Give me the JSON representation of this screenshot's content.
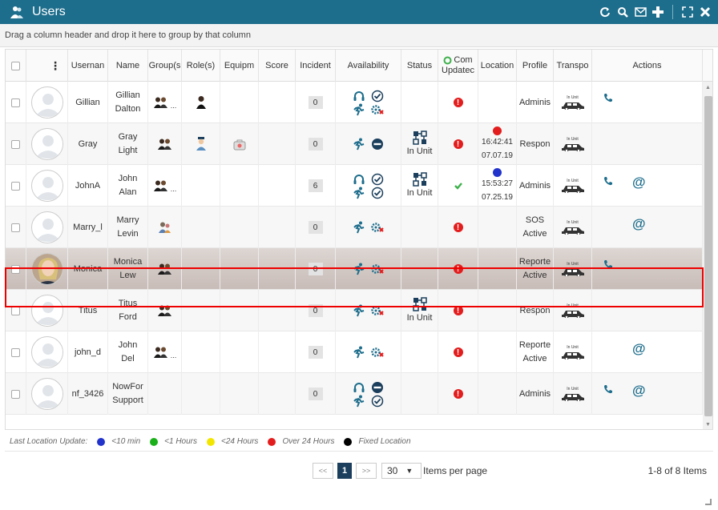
{
  "window": {
    "title": "Users"
  },
  "groupbar": {
    "hint": "Drag a column header and drop it here to group by that column"
  },
  "columns": {
    "username": "Usernan",
    "name": "Name",
    "groups": "Group(s",
    "roles": "Role(s)",
    "equipment": "Equipm",
    "score": "Score",
    "incidents": "Incident",
    "availability": "Availability",
    "status": "Status",
    "comm_updated_1": "Com",
    "comm_updated_2": "Updatec",
    "location": "Location",
    "profile": "Profile",
    "transport": "Transpo",
    "actions": "Actions"
  },
  "rows": [
    {
      "username": "Gillian",
      "first": "Gillian",
      "last": "Dalton",
      "incidents": "0",
      "status": "",
      "location_time": "",
      "location_date": "",
      "profile_1": "Adminis",
      "profile_2": "",
      "transport_label": "In Unit"
    },
    {
      "username": "Gray",
      "first": "Gray",
      "last": "Light",
      "incidents": "0",
      "status": "In Unit",
      "location_time": "16:42:41",
      "location_date": "07.07.19",
      "profile_1": "Respon",
      "profile_2": "",
      "transport_label": "In Unit"
    },
    {
      "username": "JohnA",
      "first": "John",
      "last": "Alan",
      "incidents": "6",
      "status": "In Unit",
      "location_time": "15:53:27",
      "location_date": "07.25.19",
      "profile_1": "Adminis",
      "profile_2": "",
      "transport_label": "In Unit"
    },
    {
      "username": "Marry_l",
      "first": "Marry",
      "last": "Levin",
      "incidents": "0",
      "status": "",
      "location_time": "",
      "location_date": "",
      "profile_1": "SOS",
      "profile_2": "Active",
      "transport_label": "In Unit"
    },
    {
      "username": "Monica",
      "first": "Monica",
      "last": "Lew",
      "incidents": "0",
      "status": "",
      "location_time": "",
      "location_date": "",
      "profile_1": "Reporte",
      "profile_2": "Active",
      "transport_label": "In Unit"
    },
    {
      "username": "Titus",
      "first": "Titus",
      "last": "Ford",
      "incidents": "0",
      "status": "In Unit",
      "location_time": "",
      "location_date": "",
      "profile_1": "Respon",
      "profile_2": "",
      "transport_label": "In Unit"
    },
    {
      "username": "john_d",
      "first": "John",
      "last": "Del",
      "incidents": "0",
      "status": "",
      "location_time": "",
      "location_date": "",
      "profile_1": "Reporte",
      "profile_2": "Active",
      "transport_label": "In Unit"
    },
    {
      "username": "nf_3426",
      "first": "NowFor",
      "last": "Support",
      "incidents": "0",
      "status": "",
      "location_time": "",
      "location_date": "",
      "profile_1": "Adminis",
      "profile_2": "",
      "transport_label": "In Unit"
    }
  ],
  "ellipsis": "...",
  "legend": {
    "label": "Last Location Update:",
    "items": [
      {
        "text": "<10 min",
        "color": "#2233cc"
      },
      {
        "text": "<1 Hours",
        "color": "#1ab01a"
      },
      {
        "text": "<24 Hours",
        "color": "#f2e600"
      },
      {
        "text": "Over 24 Hours",
        "color": "#e31d1d"
      },
      {
        "text": "Fixed Location",
        "color": "#000000"
      }
    ]
  },
  "pager": {
    "first": "<<",
    "current": "1",
    "next": ">>",
    "page_size": "30",
    "items_per_page": "Items per page",
    "summary": "1-8 of 8 Items"
  },
  "colors": {
    "header": "#1d6d8c",
    "accent": "#1d6d8c",
    "selected_outline": "#e00000",
    "alert": "#e31d1d"
  }
}
